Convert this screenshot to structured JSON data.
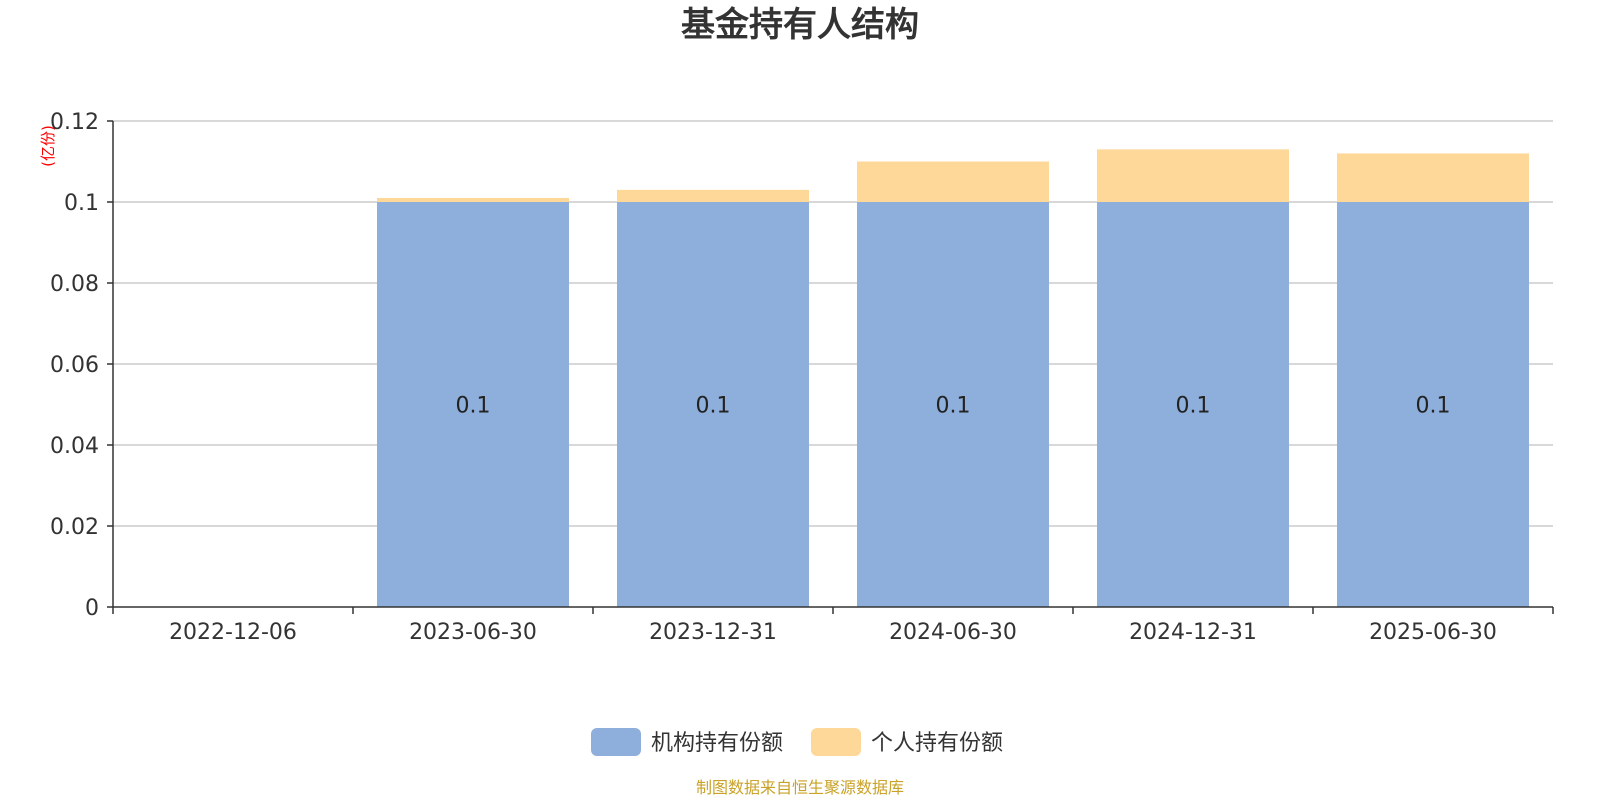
{
  "chart_data": {
    "type": "bar",
    "stacked": true,
    "title": "基金持有人结构",
    "ylabel": "(亿份)",
    "ylim": [
      0,
      0.12
    ],
    "yticks": [
      "0",
      "0.02",
      "0.04",
      "0.06",
      "0.08",
      "0.1",
      "0.12"
    ],
    "categories": [
      "2022-12-06",
      "2023-06-30",
      "2023-12-31",
      "2024-06-30",
      "2024-12-31",
      "2025-06-30"
    ],
    "series": [
      {
        "name": "机构持有份额",
        "color": "#8eaedb",
        "values": [
          0,
          0.1,
          0.1,
          0.1,
          0.1,
          0.1
        ],
        "labels": [
          "",
          "0.1",
          "0.1",
          "0.1",
          "0.1",
          "0.1"
        ]
      },
      {
        "name": "个人持有份额",
        "color": "#fed898",
        "values": [
          0,
          0.001,
          0.003,
          0.01,
          0.013,
          0.012
        ],
        "labels": [
          "",
          "",
          "",
          "",
          "",
          ""
        ]
      }
    ],
    "legend_position": "bottom-center",
    "grid": true
  },
  "source_text": "制图数据来自恒生聚源数据库",
  "colors": {
    "axis": "#333333",
    "grid": "#cccccc",
    "unit": "#ff0000",
    "source": "#c9a227"
  }
}
